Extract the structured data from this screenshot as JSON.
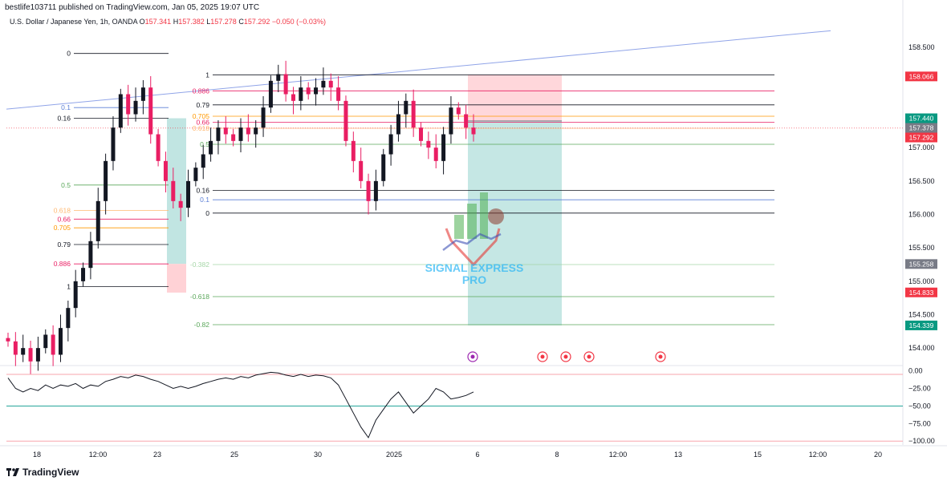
{
  "header": {
    "published": "bestlife103711 published on TradingView.com, Jan 05, 2025 19:07 UTC"
  },
  "symbol": {
    "title": "U.S. Dollar / Japanese Yen, 1h, OANDA",
    "o_label": "O",
    "o": "157.341",
    "h_label": "H",
    "h": "157.382",
    "l_label": "L",
    "l": "157.278",
    "c_label": "C",
    "c": "157.292",
    "change": "−0.050 (−0.03%)"
  },
  "watermark": {
    "line1": "SIGNAL EXPRESS",
    "line2": "PRO"
  },
  "footer": {
    "brand": "TradingView"
  },
  "colors": {
    "up": "#131722",
    "down": "#e91e63",
    "target_zone": "#b2dfdb",
    "stop_zone": "#ffcdd2",
    "trendline": "#90a4e8",
    "rsi_band_upper": "#f7a6ae",
    "rsi_band_mid": "#26a69a"
  },
  "chart_data": {
    "type": "candlestick",
    "price_axis": {
      "range": [
        153.75,
        158.85
      ],
      "ticks": [
        "158.500",
        "157.000",
        "156.500",
        "156.000",
        "155.500",
        "155.000",
        "154.500",
        "154.000"
      ],
      "tick_values": [
        158.5,
        157.0,
        156.5,
        156.0,
        155.5,
        155.0,
        154.5,
        154.0
      ]
    },
    "time_axis": {
      "labels": [
        "18",
        "12:00",
        "23",
        "25",
        "30",
        "2025",
        "6",
        "8",
        "12:00",
        "13",
        "15",
        "12:00",
        "20"
      ]
    },
    "price_tags": [
      {
        "value": "158.066",
        "price": 158.066,
        "color": "#f23645"
      },
      {
        "value": "157.440",
        "price": 157.44,
        "color": "#089981"
      },
      {
        "value": "157.378",
        "price": 157.378,
        "color": "#787b86"
      },
      {
        "value": "157.292",
        "price": 157.292,
        "color": "#f23645"
      },
      {
        "value": "155.258",
        "price": 155.258,
        "color": "#787b86"
      },
      {
        "value": "154.833",
        "price": 154.833,
        "color": "#f23645"
      },
      {
        "value": "154.339",
        "price": 154.339,
        "color": "#089981"
      }
    ],
    "fib_left": {
      "levels": [
        {
          "label": "0",
          "price": 158.41,
          "color": "#131722"
        },
        {
          "label": "0.1",
          "price": 157.6,
          "color": "#5b7fd6"
        },
        {
          "label": "0.16",
          "price": 157.44,
          "color": "#131722"
        },
        {
          "label": "0.5",
          "price": 156.44,
          "color": "#5aa75a"
        },
        {
          "label": "0.618",
          "price": 156.06,
          "color": "#ffb870"
        },
        {
          "label": "0.66",
          "price": 155.93,
          "color": "#e91e63"
        },
        {
          "label": "0.705",
          "price": 155.8,
          "color": "#ff9800"
        },
        {
          "label": "0.79",
          "price": 155.55,
          "color": "#131722"
        },
        {
          "label": "0.886",
          "price": 155.26,
          "color": "#e91e63"
        },
        {
          "label": "1",
          "price": 154.92,
          "color": "#131722"
        }
      ]
    },
    "fib_right": {
      "levels": [
        {
          "label": "1",
          "price": 158.09,
          "color": "#131722"
        },
        {
          "label": "0.886",
          "price": 157.85,
          "color": "#e91e63"
        },
        {
          "label": "0.79",
          "price": 157.64,
          "color": "#131722"
        },
        {
          "label": "0.705",
          "price": 157.47,
          "color": "#ff9800"
        },
        {
          "label": "0.66",
          "price": 157.38,
          "color": "#e91e63"
        },
        {
          "label": "0.618",
          "price": 157.29,
          "color": "#ffb870"
        },
        {
          "label": "0.5",
          "price": 157.05,
          "color": "#5aa75a"
        },
        {
          "label": "0.16",
          "price": 156.36,
          "color": "#131722"
        },
        {
          "label": "0.1",
          "price": 156.22,
          "color": "#5b7fd6"
        },
        {
          "label": "0",
          "price": 156.02,
          "color": "#131722"
        },
        {
          "label": "-0.382",
          "price": 155.25,
          "color": "#a5d6a7"
        },
        {
          "label": "-0.618",
          "price": 154.77,
          "color": "#5aa75a"
        },
        {
          "label": "-0.82",
          "price": 154.35,
          "color": "#5aa75a"
        }
      ]
    },
    "closes": [
      154.1,
      153.9,
      154.0,
      153.8,
      154.0,
      154.2,
      153.9,
      154.3,
      154.6,
      155.0,
      155.2,
      155.6,
      156.2,
      156.8,
      157.3,
      157.8,
      157.5,
      157.7,
      157.9,
      157.2,
      156.8,
      156.5,
      156.2,
      156.1,
      156.5,
      156.7,
      156.9,
      157.1,
      157.3,
      157.2,
      157.1,
      157.3,
      157.2,
      157.3,
      157.6,
      158.0,
      158.1,
      157.8,
      157.7,
      157.9,
      157.8,
      157.9,
      158.0,
      157.9,
      157.7,
      157.1,
      156.8,
      156.5,
      156.2,
      156.5,
      156.9,
      157.2,
      157.5,
      157.7,
      157.3,
      157.1,
      157.0,
      156.8,
      157.2,
      157.6,
      157.5,
      157.3,
      157.2
    ],
    "rsi": {
      "axis_ticks": [
        "0.00",
        "−25.00",
        "−50.00",
        "−75.00",
        "−100.00"
      ],
      "range": [
        -102,
        3
      ],
      "levels": [
        -5,
        -50,
        -100
      ],
      "values": [
        -10,
        -25,
        -30,
        -25,
        -28,
        -20,
        -25,
        -20,
        -22,
        -18,
        -25,
        -20,
        -22,
        -15,
        -12,
        -8,
        -10,
        -6,
        -8,
        -12,
        -15,
        -20,
        -25,
        -22,
        -25,
        -22,
        -18,
        -15,
        -12,
        -10,
        -12,
        -8,
        -10,
        -6,
        -4,
        -2,
        -3,
        -6,
        -8,
        -5,
        -8,
        -6,
        -7,
        -10,
        -20,
        -40,
        -60,
        -80,
        -95,
        -70,
        -55,
        -40,
        -30,
        -45,
        -60,
        -50,
        -40,
        -25,
        -30,
        -40,
        -38,
        -35,
        -30
      ]
    },
    "event_markers": [
      "lightning-icon",
      "us-flag-icon",
      "record-icon",
      "us-flag-icon",
      "us-flag-icon"
    ]
  }
}
